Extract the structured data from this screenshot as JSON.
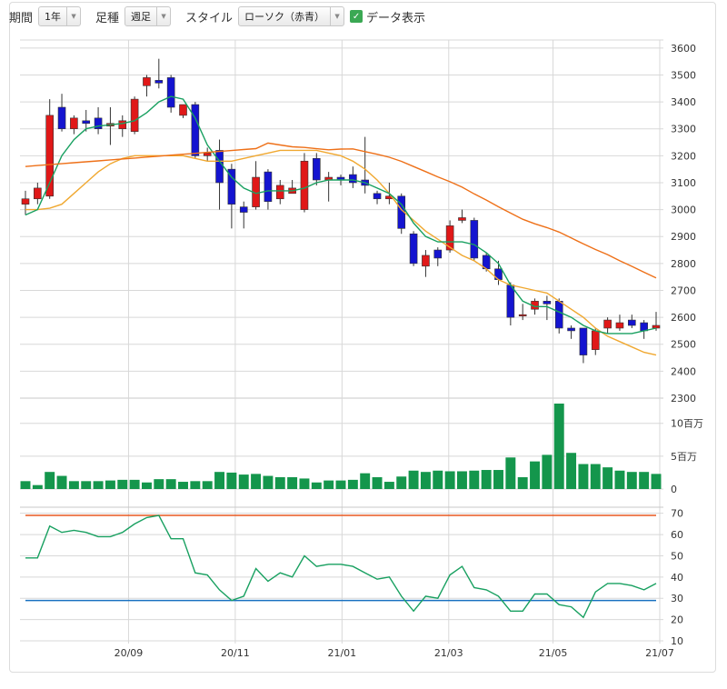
{
  "toolbar": {
    "period_label": "期間",
    "period_value": "1年",
    "interval_label": "足種",
    "interval_value": "週足",
    "style_label": "スタイル",
    "style_value": "ローソク（赤青）",
    "data_display_label": "データ表示",
    "data_display_checked": true
  },
  "chart_data": [
    {
      "type": "candlestick",
      "ylim": [
        2300,
        3650
      ],
      "yticks": [
        "3600",
        "3500",
        "3400",
        "3300",
        "3200",
        "3100",
        "3000",
        "2900",
        "2800",
        "2700",
        "2600",
        "2500",
        "2400",
        "2300"
      ],
      "xtick_labels": [
        "20/09",
        "20/11",
        "21/01",
        "21/03",
        "21/05",
        "21/07"
      ],
      "candles": [
        [
          3020,
          3070,
          3040,
          2980
        ],
        [
          3040,
          3100,
          3080,
          3020
        ],
        [
          3050,
          3410,
          3350,
          3040
        ],
        [
          3380,
          3430,
          3300,
          3290
        ],
        [
          3300,
          3350,
          3340,
          3280
        ],
        [
          3330,
          3370,
          3320,
          3290
        ],
        [
          3340,
          3380,
          3300,
          3280
        ],
        [
          3310,
          3380,
          3320,
          3240
        ],
        [
          3300,
          3350,
          3330,
          3270
        ],
        [
          3290,
          3420,
          3410,
          3280
        ],
        [
          3460,
          3500,
          3490,
          3420
        ],
        [
          3480,
          3560,
          3470,
          3450
        ],
        [
          3490,
          3500,
          3380,
          3360
        ],
        [
          3350,
          3390,
          3390,
          3340
        ],
        [
          3390,
          3400,
          3200,
          3190
        ],
        [
          3200,
          3230,
          3210,
          3180
        ],
        [
          3220,
          3260,
          3100,
          3000
        ],
        [
          3150,
          3170,
          3020,
          2930
        ],
        [
          3010,
          3030,
          2990,
          2930
        ],
        [
          3010,
          3180,
          3120,
          3000
        ],
        [
          3140,
          3150,
          3030,
          3000
        ],
        [
          3040,
          3110,
          3090,
          3020
        ],
        [
          3060,
          3110,
          3080,
          3060
        ],
        [
          3000,
          3210,
          3180,
          2990
        ],
        [
          3190,
          3210,
          3110,
          3090
        ],
        [
          3110,
          3140,
          3120,
          3030
        ],
        [
          3120,
          3130,
          3110,
          3090
        ],
        [
          3130,
          3160,
          3100,
          3080
        ],
        [
          3110,
          3270,
          3090,
          3060
        ],
        [
          3060,
          3070,
          3040,
          3020
        ],
        [
          3040,
          3100,
          3050,
          3020
        ],
        [
          3050,
          3060,
          2930,
          2910
        ],
        [
          2910,
          2920,
          2800,
          2790
        ],
        [
          2790,
          2850,
          2830,
          2750
        ],
        [
          2850,
          2860,
          2820,
          2790
        ],
        [
          2850,
          2960,
          2940,
          2840
        ],
        [
          2960,
          3000,
          2970,
          2950
        ],
        [
          2960,
          2970,
          2820,
          2810
        ],
        [
          2830,
          2840,
          2780,
          2770
        ],
        [
          2780,
          2810,
          2740,
          2720
        ],
        [
          2720,
          2730,
          2600,
          2570
        ],
        [
          2610,
          2650,
          2610,
          2590
        ],
        [
          2630,
          2670,
          2660,
          2610
        ],
        [
          2660,
          2680,
          2650,
          2590
        ],
        [
          2660,
          2670,
          2560,
          2540
        ],
        [
          2560,
          2570,
          2550,
          2520
        ],
        [
          2560,
          2560,
          2460,
          2430
        ],
        [
          2480,
          2560,
          2550,
          2460
        ],
        [
          2560,
          2600,
          2590,
          2540
        ],
        [
          2560,
          2610,
          2580,
          2550
        ],
        [
          2590,
          2610,
          2570,
          2560
        ],
        [
          2580,
          2590,
          2550,
          2520
        ],
        [
          2560,
          2620,
          2570,
          2550
        ]
      ],
      "ma_short": [
        2980,
        3000,
        3100,
        3200,
        3260,
        3300,
        3310,
        3315,
        3320,
        3330,
        3360,
        3400,
        3420,
        3410,
        3340,
        3240,
        3180,
        3120,
        3080,
        3060,
        3070,
        3070,
        3070,
        3080,
        3100,
        3110,
        3110,
        3110,
        3100,
        3080,
        3060,
        3020,
        2950,
        2900,
        2880,
        2880,
        2880,
        2870,
        2840,
        2800,
        2720,
        2660,
        2640,
        2640,
        2620,
        2600,
        2570,
        2550,
        2540,
        2540,
        2540,
        2550,
        2560
      ],
      "ma_mid": [
        3000,
        3000,
        3005,
        3020,
        3060,
        3100,
        3140,
        3170,
        3190,
        3200,
        3200,
        3200,
        3200,
        3200,
        3190,
        3180,
        3180,
        3180,
        3190,
        3200,
        3210,
        3220,
        3220,
        3220,
        3220,
        3210,
        3200,
        3180,
        3150,
        3110,
        3060,
        3000,
        2960,
        2920,
        2890,
        2860,
        2830,
        2810,
        2780,
        2740,
        2720,
        2710,
        2700,
        2690,
        2660,
        2630,
        2600,
        2560,
        2530,
        2510,
        2490,
        2470,
        2460
      ]
    },
    {
      "type": "bar",
      "ylabels": [
        "10百万",
        "5百万",
        "0"
      ],
      "ylim": [
        0,
        13000000
      ],
      "values": [
        1200000,
        600000,
        2600000,
        2000000,
        1200000,
        1200000,
        1200000,
        1300000,
        1400000,
        1400000,
        1000000,
        1500000,
        1500000,
        1100000,
        1200000,
        1200000,
        2600000,
        2500000,
        2200000,
        2300000,
        2000000,
        1800000,
        1800000,
        1600000,
        1000000,
        1300000,
        1300000,
        1400000,
        2400000,
        1800000,
        1100000,
        1900000,
        2800000,
        2600000,
        2800000,
        2700000,
        2700000,
        2800000,
        2900000,
        2900000,
        4800000,
        1800000,
        4200000,
        5200000,
        13000000,
        5500000,
        3800000,
        3800000,
        3300000,
        2800000,
        2600000,
        2600000,
        2300000
      ]
    },
    {
      "type": "line",
      "yticks": [
        "70",
        "60",
        "50",
        "40",
        "30",
        "20",
        "10"
      ],
      "ylim": [
        10,
        72
      ],
      "upper_line": 69,
      "lower_line": 29,
      "values": [
        49,
        49,
        64,
        61,
        62,
        61,
        59,
        59,
        61,
        65,
        68,
        69,
        58,
        58,
        42,
        41,
        34,
        29,
        31,
        44,
        38,
        42,
        40,
        50,
        45,
        46,
        46,
        45,
        42,
        39,
        40,
        31,
        24,
        31,
        30,
        41,
        45,
        35,
        34,
        31,
        24,
        24,
        32,
        32,
        27,
        26,
        21,
        33,
        37,
        37,
        36,
        34,
        37
      ]
    }
  ],
  "colors": {
    "up": "#e01818",
    "down": "#1414d0",
    "ma_short": "#18a060",
    "ma_mid": "#f0a830",
    "ma_long": "#ee7018",
    "volume": "#14964c",
    "rsi_line": "#18a060",
    "rsi_upper": "#e85820",
    "rsi_lower": "#1870c0",
    "grid": "#d8d8d8"
  }
}
